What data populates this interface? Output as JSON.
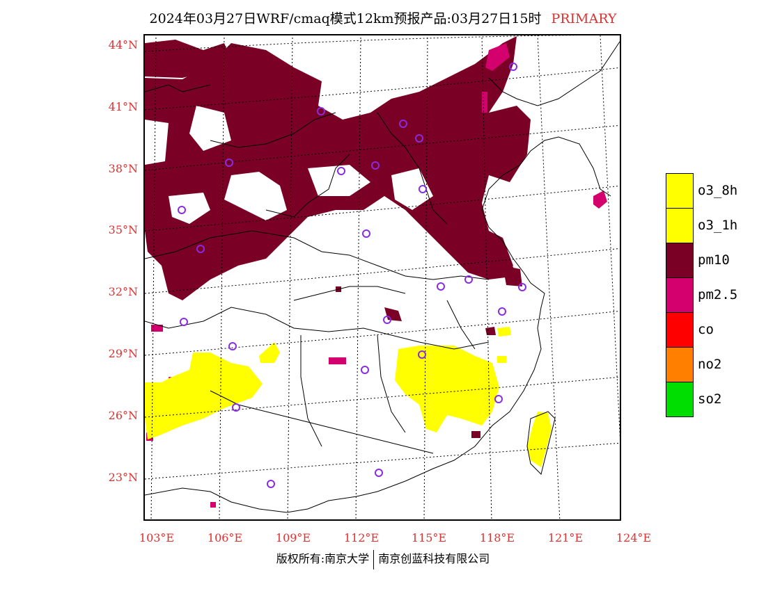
{
  "title": {
    "main": "2024年03月27日WRF/cmaq模式12km预报产品:03月27日15时",
    "tag": "PRIMARY"
  },
  "lat_labels": [
    "44°N",
    "41°N",
    "38°N",
    "35°N",
    "32°N",
    "29°N",
    "26°N",
    "23°N"
  ],
  "lon_labels": [
    "103°E",
    "106°E",
    "109°E",
    "112°E",
    "115°E",
    "118°E",
    "121°E",
    "124°E"
  ],
  "legend": [
    {
      "label": "o3_8h",
      "color": "#ffff00"
    },
    {
      "label": "o3_1h",
      "color": "#ffff00"
    },
    {
      "label": "pm10",
      "color": "#7a0026"
    },
    {
      "label": "pm2.5",
      "color": "#d4006e"
    },
    {
      "label": "co",
      "color": "#ff0000"
    },
    {
      "label": "no2",
      "color": "#ff7f00"
    },
    {
      "label": "so2",
      "color": "#00dd00"
    }
  ],
  "colors": {
    "pm10": "#7a0026",
    "pm25": "#d4006e",
    "o3": "#ffff00",
    "station_marker": "#8a2be2",
    "axis_label": "#e03030"
  },
  "copyright": {
    "left": "版权所有:南京大学",
    "right": "南京创蓝科技有限公司"
  }
}
